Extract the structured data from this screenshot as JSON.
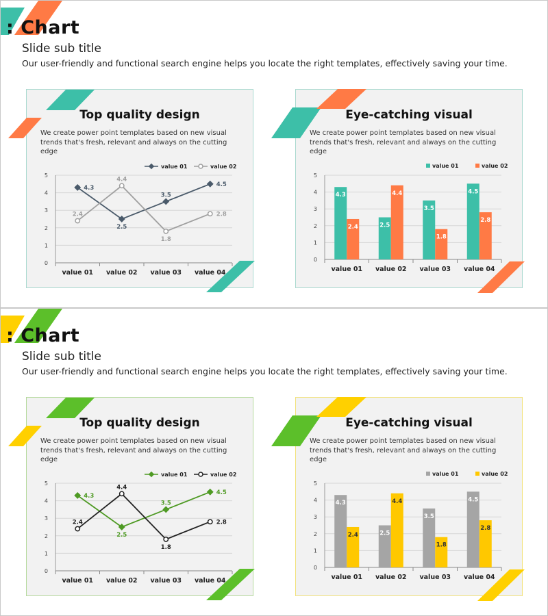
{
  "slides": [
    {
      "theme": {
        "accent1": "#3dbfa8",
        "accent2": "#ff7a45",
        "frame": "#a9d9cf",
        "line1": "#4a5a6a",
        "line2": "#a0a0a0",
        "bar1": "#3dbfa8",
        "bar2": "#ff7a45"
      },
      "title": ": Chart",
      "subtitle": "Slide sub title",
      "description": "Our user-friendly and functional search engine helps you locate the right templates, effectively saving your time.",
      "left_panel": {
        "heading": "Top quality design",
        "text": "We create power point templates based on new visual trends that's fresh, relevant and always on the cutting edge"
      },
      "right_panel": {
        "heading": "Eye-catching visual",
        "text": "We create power point templates based on new visual trends that's fresh, relevant and always on the cutting edge"
      }
    },
    {
      "theme": {
        "accent1": "#ffd000",
        "accent2": "#5cbf2a",
        "frame": "#b5d99c",
        "frame2": "#f2e27a",
        "line1": "#4e9a23",
        "line2": "#222222",
        "bar1": "#a5a5a5",
        "bar2": "#ffc800"
      },
      "title": ": Chart",
      "subtitle": "Slide sub title",
      "description": "Our user-friendly and functional search engine helps you locate the right templates, effectively saving your time.",
      "left_panel": {
        "heading": "Top quality design",
        "text": "We create power point templates based on new visual trends that's fresh, relevant and always on the cutting edge"
      },
      "right_panel": {
        "heading": "Eye-catching visual",
        "text": "We create power point templates based on new visual trends that's fresh, relevant and always on the cutting edge"
      }
    }
  ],
  "chart_data": [
    {
      "type": "line",
      "slide": 1,
      "categories": [
        "value 01",
        "value 02",
        "value 03",
        "value 04"
      ],
      "series": [
        {
          "name": "value 01",
          "values": [
            4.3,
            2.5,
            3.5,
            4.5
          ]
        },
        {
          "name": "value 02",
          "values": [
            2.4,
            4.4,
            1.8,
            2.8
          ]
        }
      ],
      "ylim": [
        0,
        5
      ],
      "yticks": [
        "0",
        "1",
        "2",
        "3",
        "4",
        "5"
      ],
      "legend": "top-right"
    },
    {
      "type": "bar",
      "slide": 1,
      "categories": [
        "value 01",
        "value 02",
        "value 03",
        "value 04"
      ],
      "series": [
        {
          "name": "value 01",
          "values": [
            4.3,
            2.5,
            3.5,
            4.5
          ]
        },
        {
          "name": "value 02",
          "values": [
            2.4,
            4.4,
            1.8,
            2.8
          ]
        }
      ],
      "ylim": [
        0,
        5
      ],
      "yticks": [
        "0",
        "1",
        "2",
        "3",
        "4",
        "5"
      ],
      "legend": "top-right"
    },
    {
      "type": "line",
      "slide": 2,
      "categories": [
        "value 01",
        "value 02",
        "value 03",
        "value 04"
      ],
      "series": [
        {
          "name": "value 01",
          "values": [
            4.3,
            2.5,
            3.5,
            4.5
          ]
        },
        {
          "name": "value 02",
          "values": [
            2.4,
            4.4,
            1.8,
            2.8
          ]
        }
      ],
      "ylim": [
        0,
        5
      ],
      "yticks": [
        "0",
        "1",
        "2",
        "3",
        "4",
        "5"
      ],
      "legend": "top-right"
    },
    {
      "type": "bar",
      "slide": 2,
      "categories": [
        "value 01",
        "value 02",
        "value 03",
        "value 04"
      ],
      "series": [
        {
          "name": "value 01",
          "values": [
            4.3,
            2.5,
            3.5,
            4.5
          ]
        },
        {
          "name": "value 02",
          "values": [
            2.4,
            4.4,
            1.8,
            2.8
          ]
        }
      ],
      "ylim": [
        0,
        5
      ],
      "yticks": [
        "0",
        "1",
        "2",
        "3",
        "4",
        "5"
      ],
      "legend": "top-right"
    }
  ]
}
